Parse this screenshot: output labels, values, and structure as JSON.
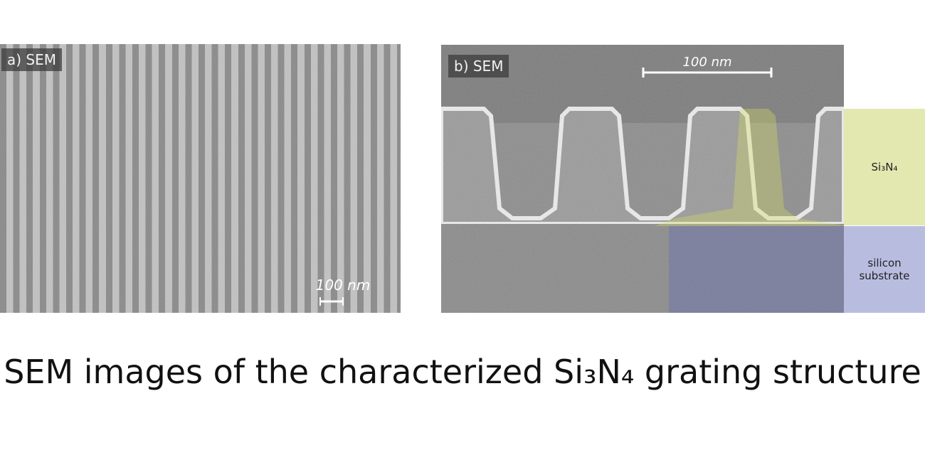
{
  "panel_a": {
    "label": "a) SEM",
    "scale_bar": "100 nm"
  },
  "panel_b": {
    "label": "b) SEM",
    "scale_bar": "100 nm",
    "layers": [
      "Si₃N₄",
      "silicon substrate"
    ]
  },
  "caption": "SEM images of the characterized Si₃N₄ grating structure"
}
